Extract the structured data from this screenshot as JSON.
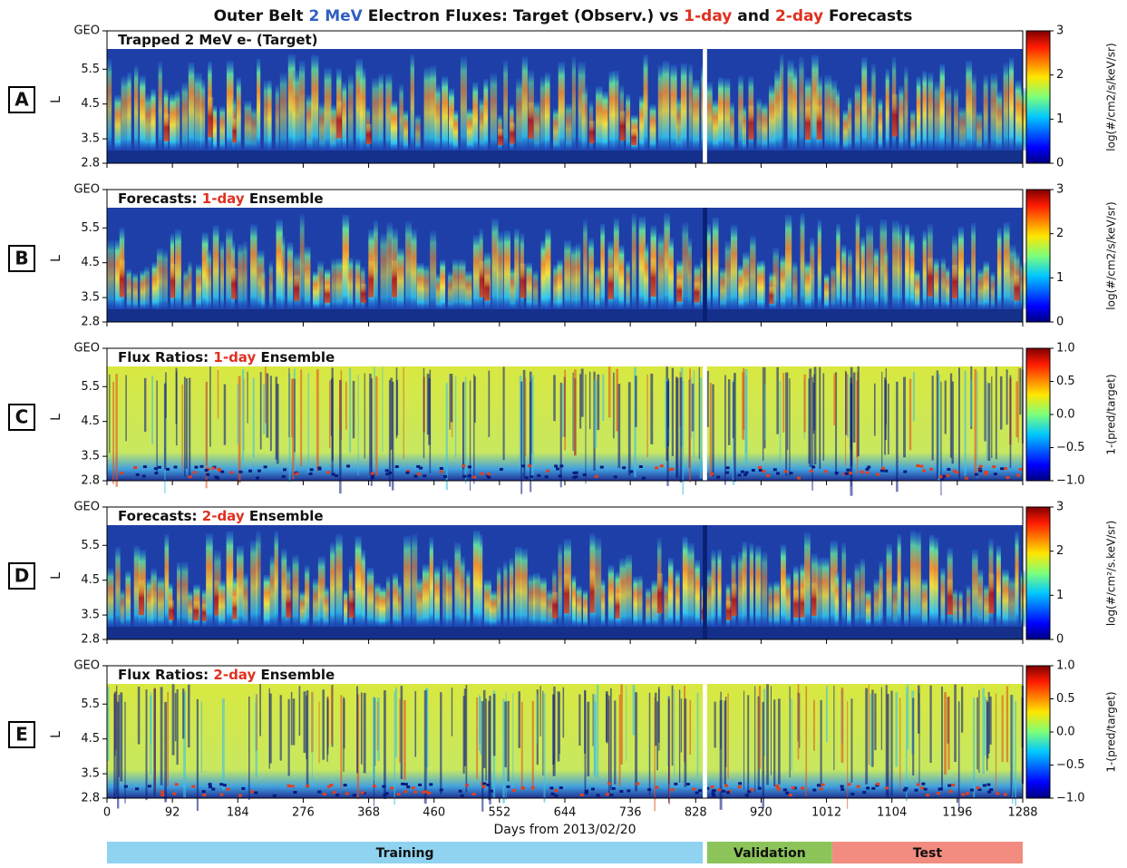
{
  "title": [
    {
      "text": "Outer Belt ",
      "color": "#111111"
    },
    {
      "text": "2 MeV",
      "color": "#3060c0"
    },
    {
      "text": " Electron Fluxes: Target (Observ.) vs ",
      "color": "#111111"
    },
    {
      "text": "1-day",
      "color": "#e03020"
    },
    {
      "text": " and ",
      "color": "#111111"
    },
    {
      "text": "2-day",
      "color": "#e03020"
    },
    {
      "text": " Forecasts",
      "color": "#111111"
    }
  ],
  "chart_data": [
    {
      "type": "heatmap",
      "kind": "flux",
      "panel_label": "A",
      "title": [
        {
          "text": "Trapped 2 MeV e- (Target)",
          "color": "#111111"
        }
      ],
      "ylabel": "L",
      "ylim": [
        2.8,
        6.6
      ],
      "yticks": [
        2.8,
        3.5,
        4.5,
        5.5,
        {
          "value": 6.6,
          "label": "GEO"
        }
      ],
      "xlim": [
        0,
        1288
      ],
      "xticks": [
        0,
        92,
        184,
        276,
        368,
        460,
        552,
        644,
        736,
        828,
        920,
        1012,
        1104,
        1196,
        1288
      ],
      "colorbar": {
        "label": "log(#/cm2/s/keV/sr)",
        "lim": [
          0,
          3
        ],
        "ticks": [
          0,
          1,
          2,
          3
        ]
      }
    },
    {
      "type": "heatmap",
      "kind": "flux",
      "panel_label": "B",
      "title": [
        {
          "text": "Forecasts: ",
          "color": "#111111"
        },
        {
          "text": "1-day",
          "color": "#e03020"
        },
        {
          "text": " Ensemble",
          "color": "#111111"
        }
      ],
      "ylabel": "L",
      "ylim": [
        2.8,
        6.6
      ],
      "yticks": [
        2.8,
        3.5,
        4.5,
        5.5,
        {
          "value": 6.6,
          "label": "GEO"
        }
      ],
      "xlim": [
        0,
        1288
      ],
      "xticks": [
        0,
        92,
        184,
        276,
        368,
        460,
        552,
        644,
        736,
        828,
        920,
        1012,
        1104,
        1196,
        1288
      ],
      "colorbar": {
        "label": "log(#/cm2/s/keV/sr)",
        "lim": [
          0,
          3
        ],
        "ticks": [
          0,
          1,
          2,
          3
        ]
      }
    },
    {
      "type": "heatmap",
      "kind": "ratio",
      "panel_label": "C",
      "title": [
        {
          "text": "Flux Ratios: ",
          "color": "#111111"
        },
        {
          "text": "1-day",
          "color": "#e03020"
        },
        {
          "text": " Ensemble",
          "color": "#111111"
        }
      ],
      "ylabel": "L",
      "ylim": [
        2.8,
        6.6
      ],
      "yticks": [
        2.8,
        3.5,
        4.5,
        5.5,
        {
          "value": 6.6,
          "label": "GEO"
        }
      ],
      "xlim": [
        0,
        1288
      ],
      "xticks": [
        0,
        92,
        184,
        276,
        368,
        460,
        552,
        644,
        736,
        828,
        920,
        1012,
        1104,
        1196,
        1288
      ],
      "colorbar": {
        "label": "1-(pred/target)",
        "lim": [
          -1,
          1
        ],
        "ticks": [
          {
            "value": -1,
            "label": "−1.0"
          },
          {
            "value": -0.5,
            "label": "−0.5"
          },
          {
            "value": 0,
            "label": "0.0"
          },
          0.5,
          {
            "value": 1,
            "label": "1.0"
          }
        ]
      }
    },
    {
      "type": "heatmap",
      "kind": "flux",
      "panel_label": "D",
      "title": [
        {
          "text": "Forecasts: ",
          "color": "#111111"
        },
        {
          "text": "2-day",
          "color": "#e03020"
        },
        {
          "text": " Ensemble",
          "color": "#111111"
        }
      ],
      "ylabel": "L",
      "ylim": [
        2.8,
        6.6
      ],
      "yticks": [
        2.8,
        3.5,
        4.5,
        5.5,
        {
          "value": 6.6,
          "label": "GEO"
        }
      ],
      "xlim": [
        0,
        1288
      ],
      "xticks": [
        0,
        92,
        184,
        276,
        368,
        460,
        552,
        644,
        736,
        828,
        920,
        1012,
        1104,
        1196,
        1288
      ],
      "colorbar": {
        "label": "log(#/cm²/s.keV/sr)",
        "lim": [
          0,
          3
        ],
        "ticks": [
          0,
          1,
          2,
          3
        ]
      }
    },
    {
      "type": "heatmap",
      "kind": "ratio",
      "panel_label": "E",
      "title": [
        {
          "text": "Flux Ratios: ",
          "color": "#111111"
        },
        {
          "text": "2-day",
          "color": "#e03020"
        },
        {
          "text": " Ensemble",
          "color": "#111111"
        }
      ],
      "ylabel": "L",
      "ylim": [
        2.8,
        6.6
      ],
      "yticks": [
        2.8,
        3.5,
        4.5,
        5.5,
        {
          "value": 6.6,
          "label": "GEO"
        }
      ],
      "xlim": [
        0,
        1288
      ],
      "xticks": [
        0,
        92,
        184,
        276,
        368,
        460,
        552,
        644,
        736,
        828,
        920,
        1012,
        1104,
        1196,
        1288
      ],
      "xlabel": "Days from 2013/02/20",
      "colorbar": {
        "label": "1-(pred/target)",
        "lim": [
          -1,
          1
        ],
        "ticks": [
          {
            "value": -1,
            "label": "−1.0"
          },
          {
            "value": -0.5,
            "label": "−0.5"
          },
          {
            "value": 0,
            "label": "0.0"
          },
          0.5,
          {
            "value": 1,
            "label": "1.0"
          }
        ]
      }
    }
  ],
  "periods": [
    {
      "name": "Training",
      "start": 0,
      "end": 838,
      "color": "#8fd3f0"
    },
    {
      "name": "Validation",
      "start": 844,
      "end": 1020,
      "color": "#8cc45a"
    },
    {
      "name": "Test",
      "start": 1020,
      "end": 1288,
      "color": "#f28c80"
    }
  ]
}
